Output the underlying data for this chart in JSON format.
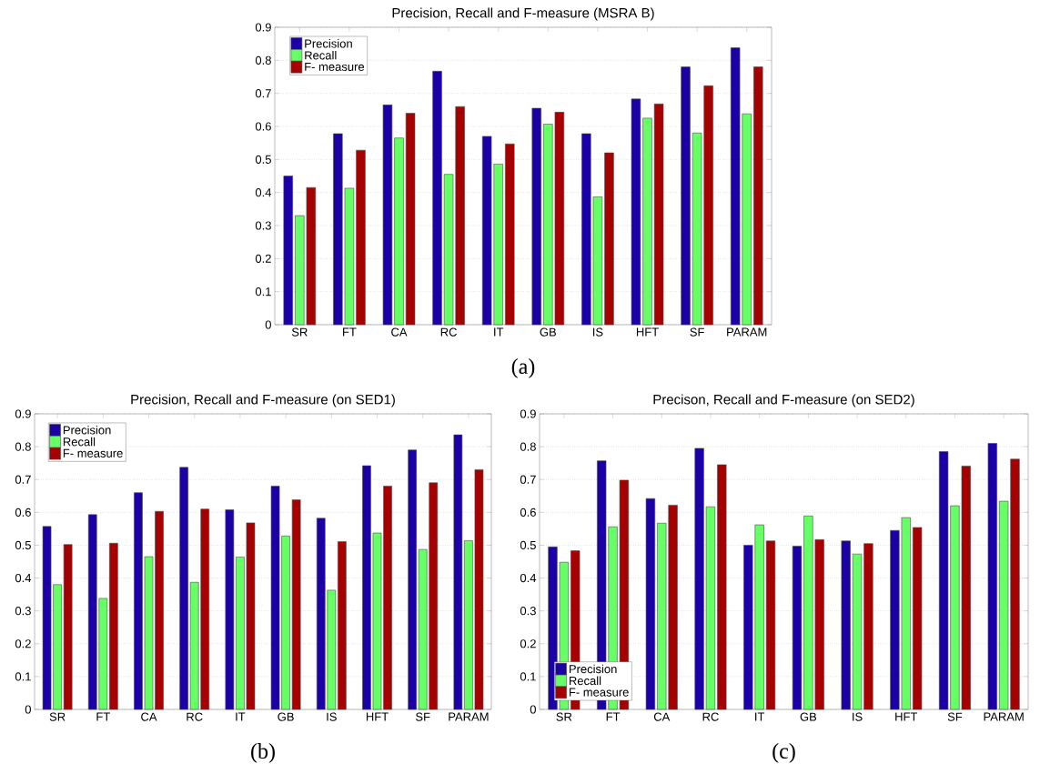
{
  "chart_data": [
    {
      "type": "bar",
      "title": "Precision, Recall and F-measure (MSRA B)",
      "categories": [
        "SR",
        "FT",
        "CA",
        "RC",
        "IT",
        "GB",
        "IS",
        "HFT",
        "SF",
        "PARAM"
      ],
      "series": [
        {
          "name": "Precision",
          "color": "#1a00a6",
          "values": [
            0.45,
            0.578,
            0.665,
            0.767,
            0.57,
            0.655,
            0.578,
            0.683,
            0.78,
            0.838
          ]
        },
        {
          "name": "Recall",
          "color": "#66ff66",
          "values": [
            0.33,
            0.413,
            0.565,
            0.455,
            0.486,
            0.607,
            0.387,
            0.625,
            0.58,
            0.638
          ]
        },
        {
          "name": "F- measure",
          "color": "#a60000",
          "values": [
            0.415,
            0.528,
            0.64,
            0.66,
            0.547,
            0.643,
            0.52,
            0.668,
            0.723,
            0.78
          ]
        }
      ],
      "ylim": [
        0,
        0.9
      ],
      "yticks": [
        0,
        0.1,
        0.2,
        0.3,
        0.4,
        0.5,
        0.6,
        0.7,
        0.8,
        0.9
      ],
      "grid": "y",
      "legend": "top left",
      "annotations": [
        "(a)"
      ]
    },
    {
      "type": "bar",
      "title": "Precision, Recall and F-measure (on SED1)",
      "categories": [
        "SR",
        "FT",
        "CA",
        "RC",
        "IT",
        "GB",
        "IS",
        "HFT",
        "SF",
        "PARAM"
      ],
      "series": [
        {
          "name": "Precision",
          "color": "#1a00a6",
          "values": [
            0.557,
            0.593,
            0.66,
            0.737,
            0.608,
            0.68,
            0.582,
            0.742,
            0.79,
            0.836
          ]
        },
        {
          "name": "Recall",
          "color": "#66ff66",
          "values": [
            0.38,
            0.338,
            0.465,
            0.387,
            0.464,
            0.528,
            0.363,
            0.537,
            0.487,
            0.514
          ]
        },
        {
          "name": "F- measure",
          "color": "#a60000",
          "values": [
            0.502,
            0.506,
            0.603,
            0.61,
            0.568,
            0.638,
            0.511,
            0.68,
            0.69,
            0.73
          ]
        }
      ],
      "ylim": [
        0,
        0.9
      ],
      "yticks": [
        0,
        0.1,
        0.2,
        0.3,
        0.4,
        0.5,
        0.6,
        0.7,
        0.8,
        0.9
      ],
      "grid": "y",
      "legend": "top left",
      "annotations": [
        "(b)"
      ]
    },
    {
      "type": "bar",
      "title": "Precison, Recall and F-measure (on SED2)",
      "categories": [
        "SR",
        "FT",
        "CA",
        "RC",
        "IT",
        "GB",
        "IS",
        "HFT",
        "SF",
        "PARAM"
      ],
      "series": [
        {
          "name": "Precision",
          "color": "#1a00a6",
          "values": [
            0.495,
            0.757,
            0.642,
            0.795,
            0.5,
            0.497,
            0.513,
            0.545,
            0.785,
            0.81
          ]
        },
        {
          "name": "Recall",
          "color": "#66ff66",
          "values": [
            0.448,
            0.556,
            0.567,
            0.617,
            0.562,
            0.589,
            0.473,
            0.584,
            0.62,
            0.634
          ]
        },
        {
          "name": "F- measure",
          "color": "#a60000",
          "values": [
            0.483,
            0.698,
            0.622,
            0.745,
            0.513,
            0.517,
            0.505,
            0.554,
            0.741,
            0.762
          ]
        }
      ],
      "ylim": [
        0,
        0.9
      ],
      "yticks": [
        0,
        0.1,
        0.2,
        0.3,
        0.4,
        0.5,
        0.6,
        0.7,
        0.8,
        0.9
      ],
      "grid": "y",
      "legend": "bottom left",
      "annotations": [
        "(c)"
      ]
    }
  ]
}
